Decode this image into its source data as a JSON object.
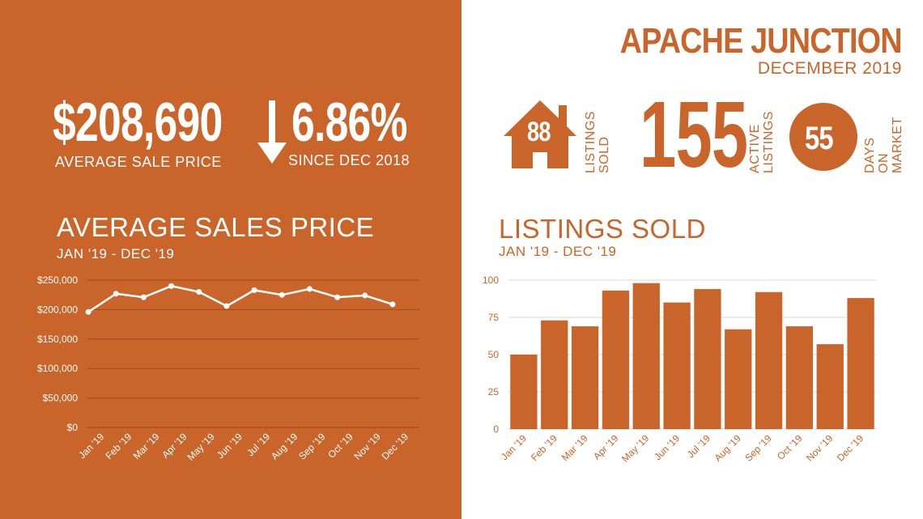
{
  "header": {
    "city": "APACHE JUNCTION",
    "period": "DECEMBER 2019"
  },
  "stats": {
    "avg_price_value": "$208,690",
    "avg_price_label": "AVERAGE  SALE PRICE",
    "change_value": "6.86%",
    "change_label": "SINCE DEC 2018",
    "change_direction_icon": "arrow-down-icon",
    "sold_value": "88",
    "sold_label_line1": "LISTINGS",
    "sold_label_line2": "SOLD",
    "sold_icon": "house-icon",
    "active_value": "155",
    "active_label_line1": "ACTIVE",
    "active_label_line2": "LISTINGS",
    "dom_value": "55",
    "dom_label_line1": "DAYS ON",
    "dom_label_line2": "MARKET"
  },
  "colors": {
    "brand": "#c9652a",
    "white": "#ffffff"
  },
  "chart_data": [
    {
      "type": "line",
      "title": "AVERAGE SALES PRICE",
      "subtitle": "JAN '19 - DEC '19",
      "categories": [
        "Jan '19",
        "Feb '19",
        "Mar '19",
        "Apr '19",
        "May '19",
        "Jun '19",
        "Jul '19",
        "Aug '19",
        "Sep '19",
        "Oct '19",
        "Nov '19",
        "Dec '19"
      ],
      "values": [
        196000,
        227000,
        221000,
        240000,
        230000,
        206000,
        233000,
        225000,
        235000,
        221000,
        224000,
        209000
      ],
      "yticks": [
        "$0",
        "$50,000",
        "$100,000",
        "$150,000",
        "$200,000",
        "$250,000"
      ],
      "ylim": [
        0,
        250000
      ],
      "grid": true
    },
    {
      "type": "bar",
      "title": "LISTINGS SOLD",
      "subtitle": "JAN '19 - DEC '19",
      "categories": [
        "Jan '19",
        "Feb '19",
        "Mar '19",
        "Apr '19",
        "May '19",
        "Jun '19",
        "Jul '19",
        "Aug '19",
        "Sep '19",
        "Oct '19",
        "Nov '19",
        "Dec '19"
      ],
      "values": [
        50,
        73,
        69,
        93,
        98,
        85,
        94,
        67,
        92,
        69,
        57,
        88
      ],
      "yticks": [
        "0",
        "25",
        "50",
        "75",
        "100"
      ],
      "ylim": [
        0,
        100
      ],
      "grid": true
    }
  ]
}
